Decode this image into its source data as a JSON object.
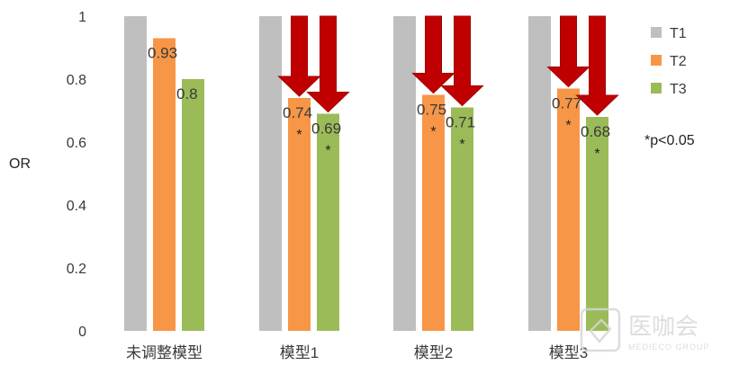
{
  "chart_data": {
    "type": "bar",
    "ylabel": "OR",
    "ylim": [
      0,
      1
    ],
    "yticks": [
      0,
      0.2,
      0.4,
      0.6,
      0.8,
      1
    ],
    "ytick_labels": [
      "0",
      "0.2",
      "0.4",
      "0.6",
      "0.8",
      "1"
    ],
    "grid": false,
    "legend_position": "right",
    "categories": [
      "未调整模型",
      "模型1",
      "模型2",
      "模型3"
    ],
    "series": [
      {
        "name": "T1",
        "color": "#bfbfbf",
        "values": [
          1,
          1,
          1,
          1
        ],
        "labels": [
          "",
          "",
          "",
          ""
        ],
        "significant": [
          false,
          false,
          false,
          false
        ]
      },
      {
        "name": "T2",
        "color": "#f79646",
        "values": [
          0.93,
          0.74,
          0.75,
          0.77
        ],
        "labels": [
          "0.93",
          "0.74",
          "0.75",
          "0.77"
        ],
        "significant": [
          false,
          true,
          true,
          true
        ]
      },
      {
        "name": "T3",
        "color": "#9bbb59",
        "values": [
          0.8,
          0.69,
          0.71,
          0.68
        ],
        "labels": [
          "0.8",
          "0.69",
          "0.71",
          "0.68"
        ],
        "significant": [
          false,
          true,
          true,
          true
        ]
      }
    ],
    "significance_marker": "*",
    "annotation": "*p<0.05",
    "arrows": {
      "color": "#c00000",
      "on_categories": [
        1,
        2,
        3
      ],
      "on_series": [
        1,
        2
      ]
    }
  },
  "watermark": {
    "name": "医咖会",
    "subtitle": "MEDIECO GROUP"
  }
}
